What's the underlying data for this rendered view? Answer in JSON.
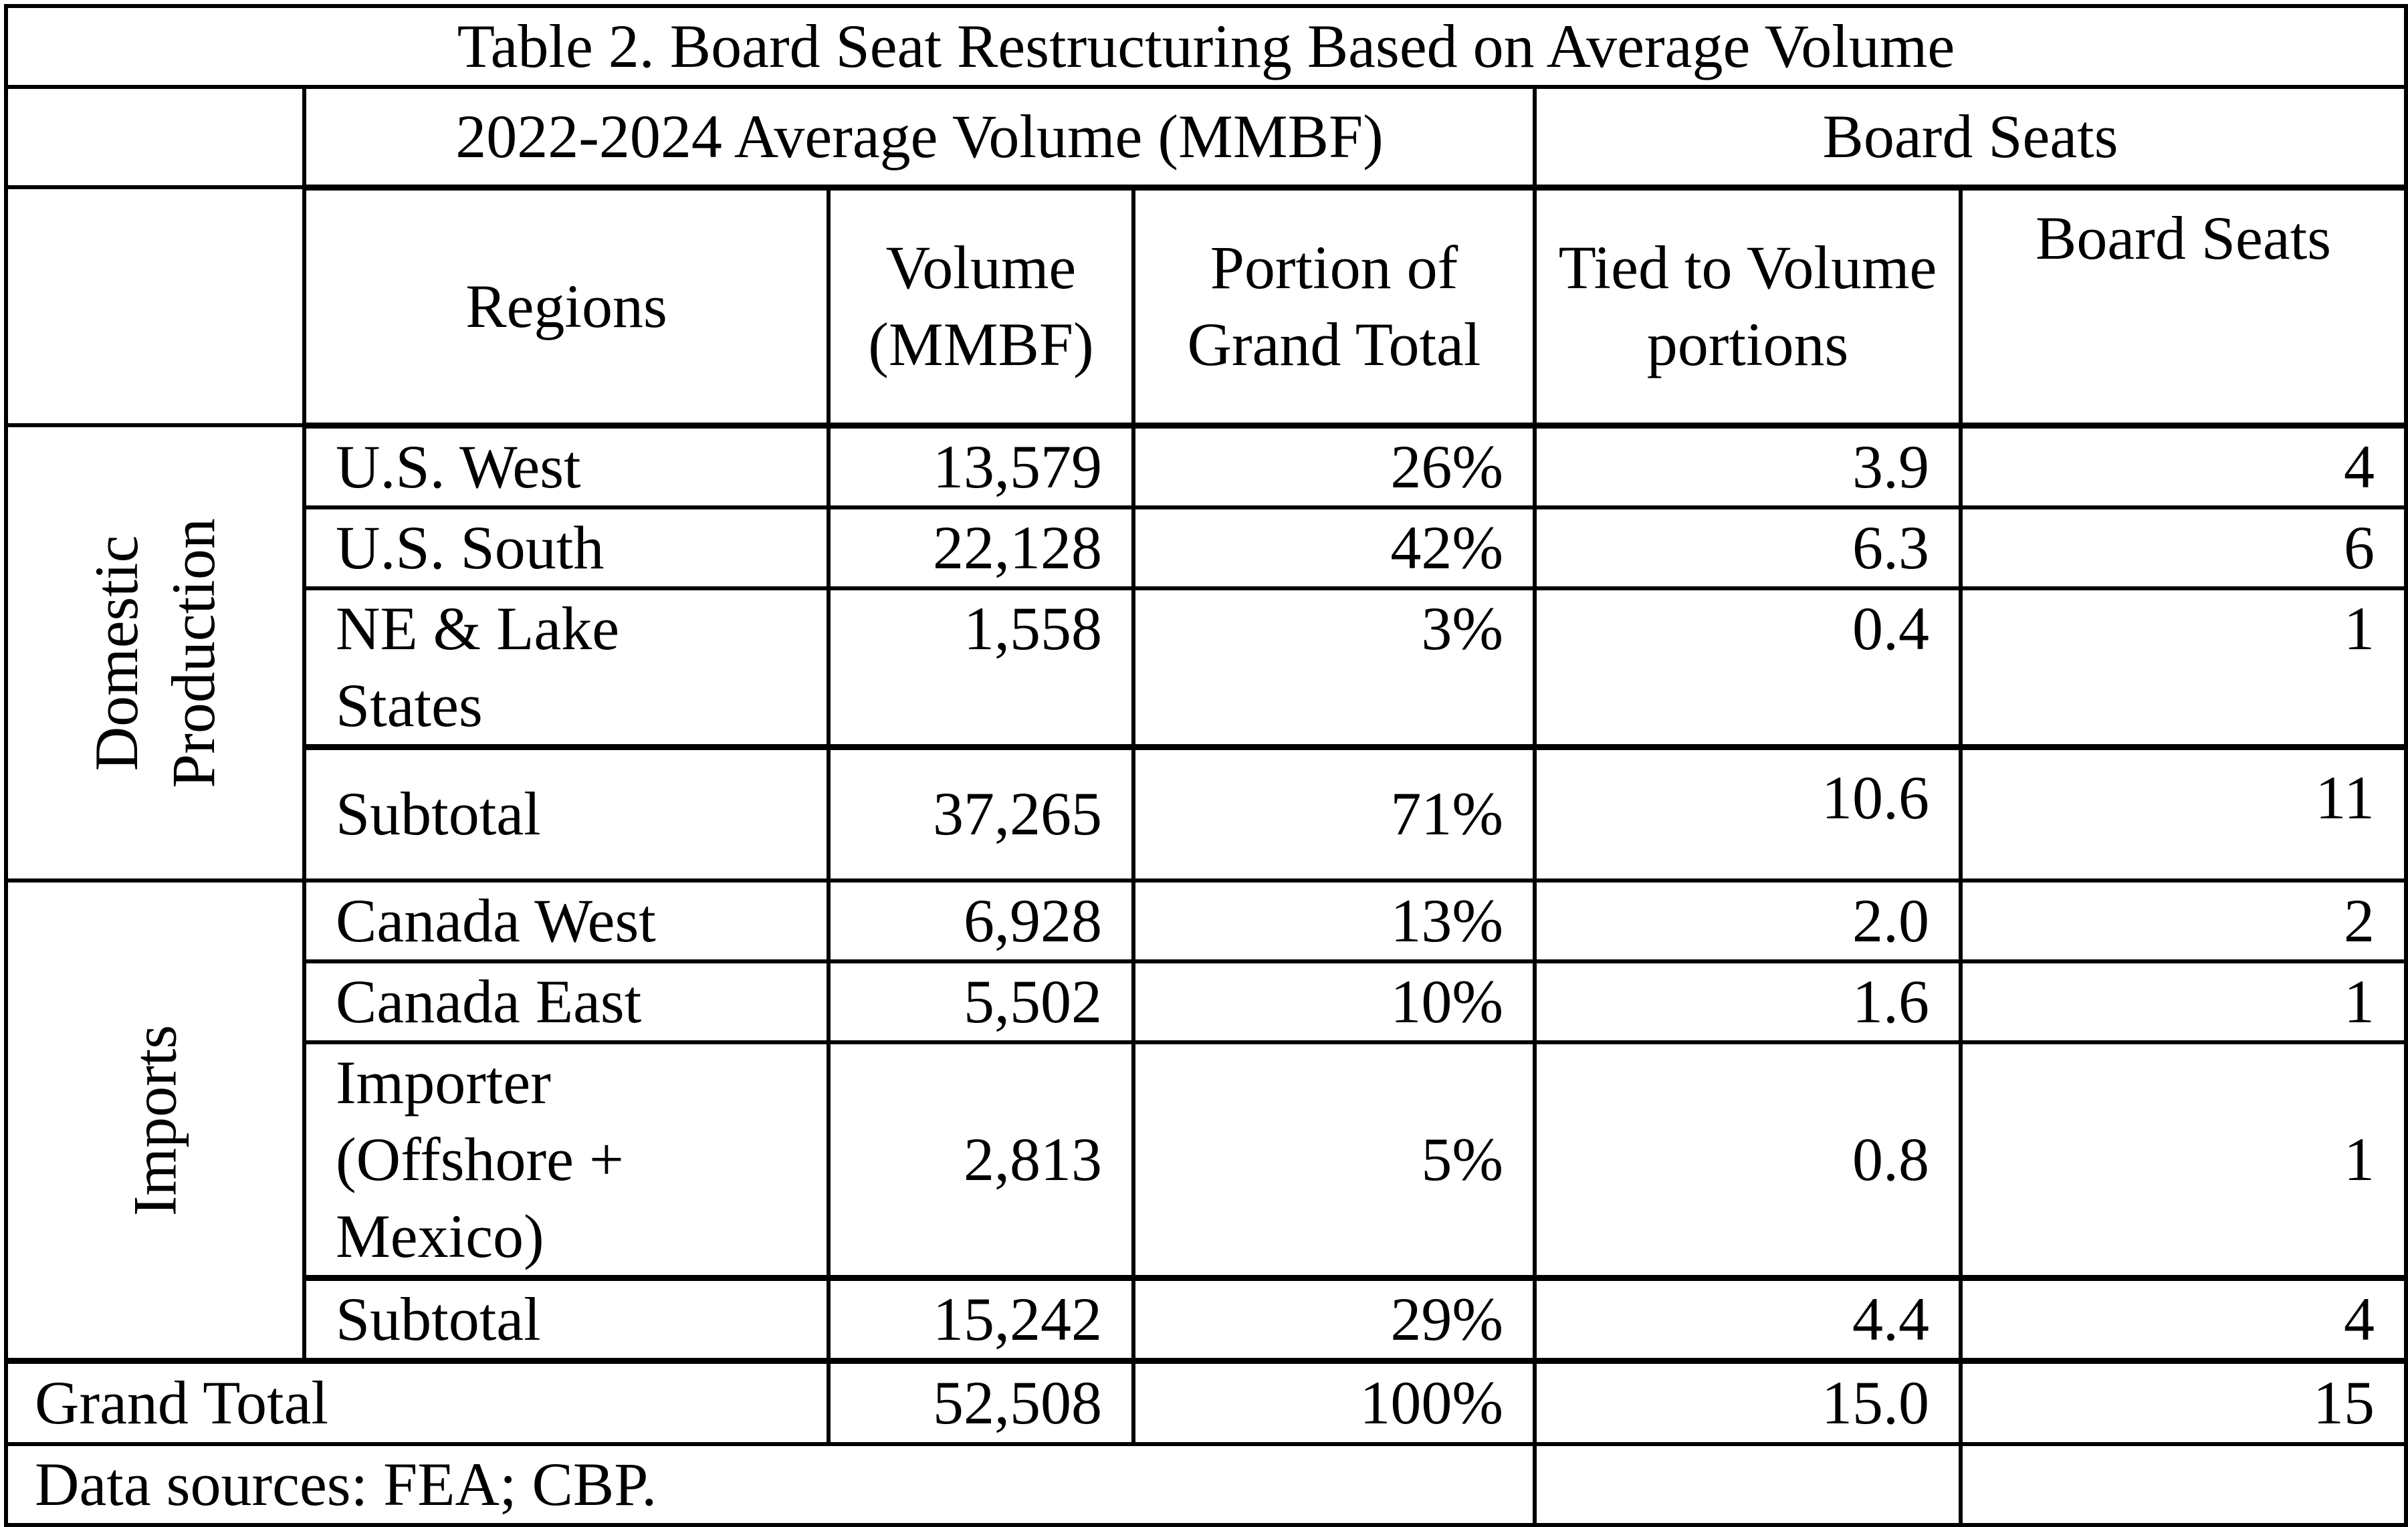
{
  "title": "Table 2. Board Seat Restructuring Based on Average Volume",
  "headers": {
    "group_volume": "2022-2024 Average Volume (MMBF)",
    "group_seats": "Board Seats",
    "regions": "Regions",
    "volume": "Volume (MMBF)",
    "portion": "Portion of Grand Total",
    "tied": "Tied to Volume portions",
    "seats": "Board Seats"
  },
  "groups": {
    "domestic": "Domestic Production",
    "imports": "Imports"
  },
  "rows": [
    {
      "region": "U.S. West",
      "volume": "13,579",
      "portion": "26%",
      "tied": "3.9",
      "seats": "4"
    },
    {
      "region": "U.S. South",
      "volume": "22,128",
      "portion": "42%",
      "tied": "6.3",
      "seats": "6"
    },
    {
      "region": "NE & Lake States",
      "volume": "1,558",
      "portion": "3%",
      "tied": "0.4",
      "seats": "1"
    },
    {
      "region": "Subtotal",
      "volume": "37,265",
      "portion": "71%",
      "tied": "10.6",
      "seats": "11"
    },
    {
      "region": "Canada West",
      "volume": "6,928",
      "portion": "13%",
      "tied": "2.0",
      "seats": "2"
    },
    {
      "region": "Canada East",
      "volume": "5,502",
      "portion": "10%",
      "tied": "1.6",
      "seats": "1"
    },
    {
      "region": "Importer (Offshore + Mexico)",
      "volume": "2,813",
      "portion": "5%",
      "tied": "0.8",
      "seats": "1"
    },
    {
      "region": "Subtotal",
      "volume": "15,242",
      "portion": "29%",
      "tied": "4.4",
      "seats": "4"
    }
  ],
  "grand_total": {
    "label": "Grand Total",
    "volume": "52,508",
    "portion": "100%",
    "tied": "15.0",
    "seats": "15"
  },
  "footnote": "Data sources: FEA; CBP."
}
